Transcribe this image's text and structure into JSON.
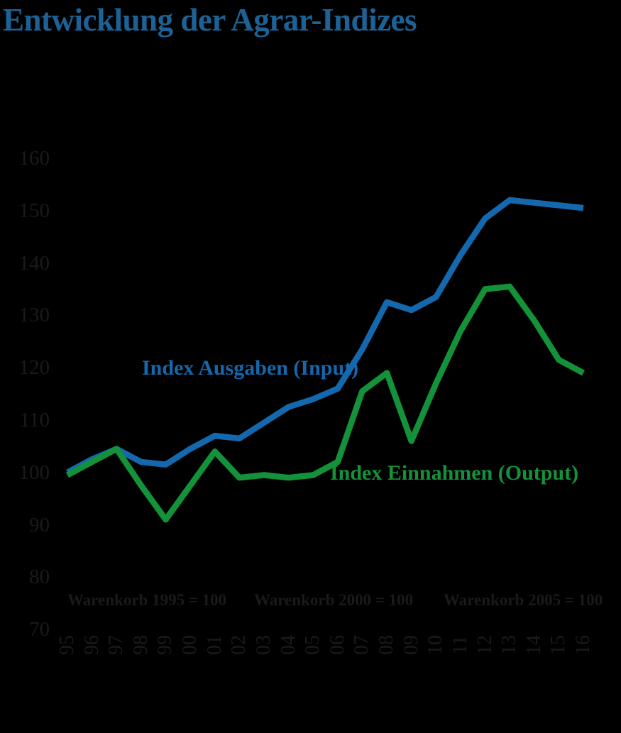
{
  "title": "Entwicklung der Agrar-Indizes",
  "colors": {
    "background": "#000000",
    "title_text": "#1C6296",
    "axis_text": "#1A1A1A",
    "input_line": "#1468AE",
    "output_line": "#13923A"
  },
  "annotations": {
    "input_label": "Index Ausgaben (Input)",
    "output_label": "Index Einnahmen (Output)",
    "basket_notes": [
      "Warenkorb 1995 = 100",
      "Warenkorb 2000 = 100",
      "Warenkorb 2005 = 100"
    ]
  },
  "chart_data": {
    "type": "line",
    "title": "Entwicklung der Agrar-Indizes",
    "categories": [
      "95",
      "96",
      "97",
      "98",
      "99",
      "00",
      "01",
      "02",
      "03",
      "04",
      "05",
      "06",
      "07",
      "08",
      "09",
      "10",
      "11",
      "12",
      "13",
      "14",
      "15",
      "16"
    ],
    "series": [
      {
        "name": "Index Ausgaben (Input)",
        "color": "#1468AE",
        "values": [
          100,
          102.5,
          104.5,
          102,
          101.5,
          104.5,
          107,
          106.5,
          109.5,
          112.5,
          114,
          116,
          123.5,
          132.5,
          131,
          133.5,
          141.5,
          148.5,
          152,
          151.5,
          151,
          150.5
        ]
      },
      {
        "name": "Index Einnahmen (Output)",
        "color": "#13923A",
        "values": [
          99.5,
          102,
          104.5,
          97.5,
          91,
          97.5,
          104,
          99,
          99.5,
          99,
          99.5,
          102,
          115.5,
          119,
          106,
          117,
          127,
          135,
          135.5,
          129,
          121.5,
          119
        ]
      }
    ],
    "yticks": [
      160,
      150,
      140,
      130,
      120,
      110,
      100,
      90,
      80,
      70
    ],
    "ylim": [
      70,
      160
    ],
    "xlabel": "",
    "ylabel": "",
    "grid": false,
    "legend_position": "inline-labels",
    "annotations": [
      "Warenkorb 1995 = 100",
      "Warenkorb 2000 = 100",
      "Warenkorb 2005 = 100"
    ]
  }
}
